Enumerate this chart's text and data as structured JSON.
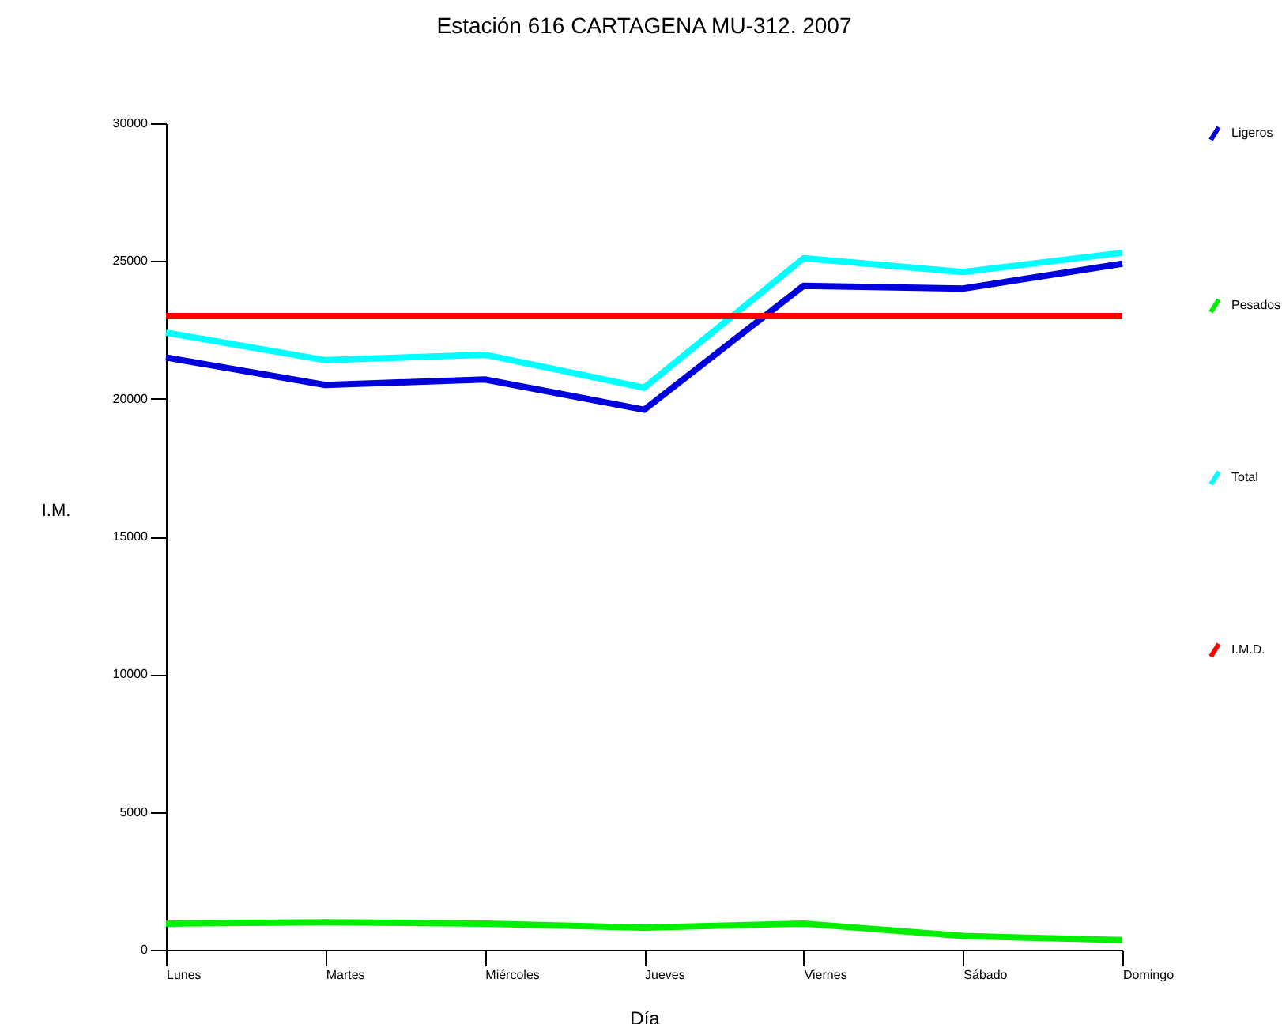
{
  "chart_data": {
    "type": "line",
    "title": "Estación 616   CARTAGENA  MU-312. 2007",
    "xlabel": "Día",
    "ylabel": "I.M.",
    "categories": [
      "Lunes",
      "Martes",
      "Miércoles",
      "Jueves",
      "Viernes",
      "Sábado",
      "Domingo"
    ],
    "series": [
      {
        "name": "Ligeros",
        "color": "#0000dd",
        "values": [
          21500,
          20500,
          20700,
          19600,
          24100,
          24000,
          24900
        ]
      },
      {
        "name": "Pesados",
        "color": "#00ee00",
        "values": [
          950,
          1000,
          950,
          800,
          950,
          500,
          350
        ]
      },
      {
        "name": "Total",
        "color": "#00ffff",
        "values": [
          22400,
          21400,
          21600,
          20400,
          25100,
          24600,
          25300
        ]
      },
      {
        "name": "I.M.D.",
        "color": "#ff0000",
        "values": [
          23000,
          23000,
          23000,
          23000,
          23000,
          23000,
          23000
        ]
      }
    ],
    "ylim": [
      0,
      30000
    ],
    "yticks": [
      0,
      5000,
      10000,
      15000,
      20000,
      25000,
      30000
    ],
    "grid": false,
    "legend": "right",
    "marker": "none",
    "line_style": "solid"
  }
}
